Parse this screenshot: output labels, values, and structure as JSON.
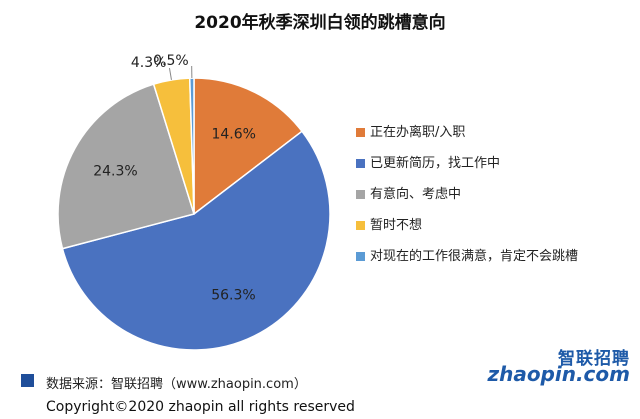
{
  "colors": {
    "orange": "#e07b39",
    "blue": "#4a72c0",
    "gray": "#a5a5a5",
    "yellow": "#f6bf3c",
    "light_blue": "#5b9bd5",
    "source_swatch": "#1f4e9a"
  },
  "chart_data": {
    "type": "pie",
    "title": "2020年秋季深圳白领的跳槽意向",
    "start_angle_deg": 0,
    "direction": "clockwise",
    "legend_position": "right",
    "slices": [
      {
        "name": "正在办离职/入职",
        "value": 14.6,
        "label": "14.6%",
        "color": "#e07b39"
      },
      {
        "name": "已更新简历，找工作中",
        "value": 56.3,
        "label": "56.3%",
        "color": "#4a72c0"
      },
      {
        "name": "有意向、考虑中",
        "value": 24.3,
        "label": "24.3%",
        "color": "#a5a5a5"
      },
      {
        "name": "暂时不想",
        "value": 4.3,
        "label": "4.3%",
        "color": "#f6bf3c"
      },
      {
        "name": "对现在的工作很满意，肯定不会跳槽",
        "value": 0.5,
        "label": "0.5%",
        "color": "#5b9bd5"
      }
    ]
  },
  "footer": {
    "source": "数据来源：智联招聘（www.zhaopin.com）",
    "copyright": "Copyright©2020 zhaopin all rights reserved"
  },
  "logo": {
    "cn": "智联招聘",
    "en": "zhaopin.com"
  }
}
